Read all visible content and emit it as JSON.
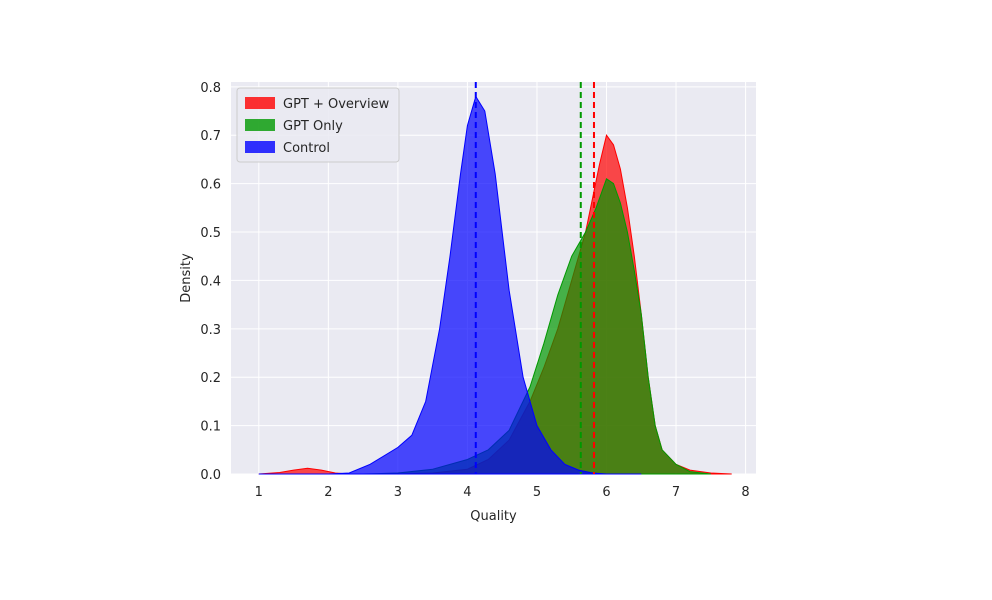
{
  "chart_data": {
    "type": "area",
    "title": "",
    "xlabel": "Quality",
    "ylabel": "Density",
    "xlim": [
      0.6,
      8.15
    ],
    "ylim": [
      0,
      0.81
    ],
    "x_ticks": [
      "1",
      "2",
      "3",
      "4",
      "5",
      "6",
      "7",
      "8"
    ],
    "y_ticks": [
      "0.0",
      "0.1",
      "0.2",
      "0.3",
      "0.4",
      "0.5",
      "0.6",
      "0.7",
      "0.8"
    ],
    "grid": true,
    "legend_position": "top-left",
    "series": [
      {
        "name": "GPT + Overview",
        "color": "#ff0000",
        "mean": 5.82,
        "points": [
          [
            1.0,
            0.0
          ],
          [
            1.3,
            0.003
          ],
          [
            1.5,
            0.008
          ],
          [
            1.7,
            0.012
          ],
          [
            1.9,
            0.008
          ],
          [
            2.1,
            0.002
          ],
          [
            2.3,
            0.0
          ],
          [
            3.0,
            0.0
          ],
          [
            3.5,
            0.002
          ],
          [
            4.0,
            0.01
          ],
          [
            4.3,
            0.03
          ],
          [
            4.6,
            0.07
          ],
          [
            4.9,
            0.15
          ],
          [
            5.1,
            0.22
          ],
          [
            5.3,
            0.3
          ],
          [
            5.5,
            0.4
          ],
          [
            5.7,
            0.5
          ],
          [
            5.9,
            0.64
          ],
          [
            6.0,
            0.7
          ],
          [
            6.1,
            0.68
          ],
          [
            6.2,
            0.63
          ],
          [
            6.3,
            0.55
          ],
          [
            6.4,
            0.45
          ],
          [
            6.5,
            0.33
          ],
          [
            6.6,
            0.2
          ],
          [
            6.7,
            0.1
          ],
          [
            6.8,
            0.05
          ],
          [
            7.0,
            0.02
          ],
          [
            7.2,
            0.008
          ],
          [
            7.5,
            0.002
          ],
          [
            7.8,
            0.0
          ]
        ]
      },
      {
        "name": "GPT Only",
        "color": "#009900",
        "mean": 5.63,
        "points": [
          [
            2.5,
            0.0
          ],
          [
            3.0,
            0.002
          ],
          [
            3.5,
            0.01
          ],
          [
            4.0,
            0.03
          ],
          [
            4.3,
            0.05
          ],
          [
            4.6,
            0.09
          ],
          [
            4.9,
            0.18
          ],
          [
            5.1,
            0.27
          ],
          [
            5.3,
            0.37
          ],
          [
            5.5,
            0.45
          ],
          [
            5.7,
            0.5
          ],
          [
            5.85,
            0.55
          ],
          [
            6.0,
            0.61
          ],
          [
            6.1,
            0.6
          ],
          [
            6.2,
            0.56
          ],
          [
            6.3,
            0.5
          ],
          [
            6.4,
            0.42
          ],
          [
            6.5,
            0.33
          ],
          [
            6.6,
            0.2
          ],
          [
            6.7,
            0.1
          ],
          [
            6.8,
            0.05
          ],
          [
            7.0,
            0.02
          ],
          [
            7.2,
            0.005
          ],
          [
            7.5,
            0.0
          ]
        ]
      },
      {
        "name": "Control",
        "color": "#0000ff",
        "mean": 4.12,
        "points": [
          [
            1.0,
            0.0
          ],
          [
            2.0,
            0.0
          ],
          [
            2.3,
            0.002
          ],
          [
            2.6,
            0.02
          ],
          [
            3.0,
            0.055
          ],
          [
            3.2,
            0.08
          ],
          [
            3.4,
            0.15
          ],
          [
            3.6,
            0.3
          ],
          [
            3.75,
            0.45
          ],
          [
            3.9,
            0.62
          ],
          [
            4.0,
            0.72
          ],
          [
            4.12,
            0.78
          ],
          [
            4.25,
            0.75
          ],
          [
            4.4,
            0.62
          ],
          [
            4.6,
            0.38
          ],
          [
            4.8,
            0.2
          ],
          [
            5.0,
            0.1
          ],
          [
            5.2,
            0.05
          ],
          [
            5.4,
            0.02
          ],
          [
            5.6,
            0.008
          ],
          [
            5.8,
            0.002
          ],
          [
            6.0,
            0.0
          ],
          [
            6.5,
            0.0
          ]
        ]
      }
    ]
  }
}
